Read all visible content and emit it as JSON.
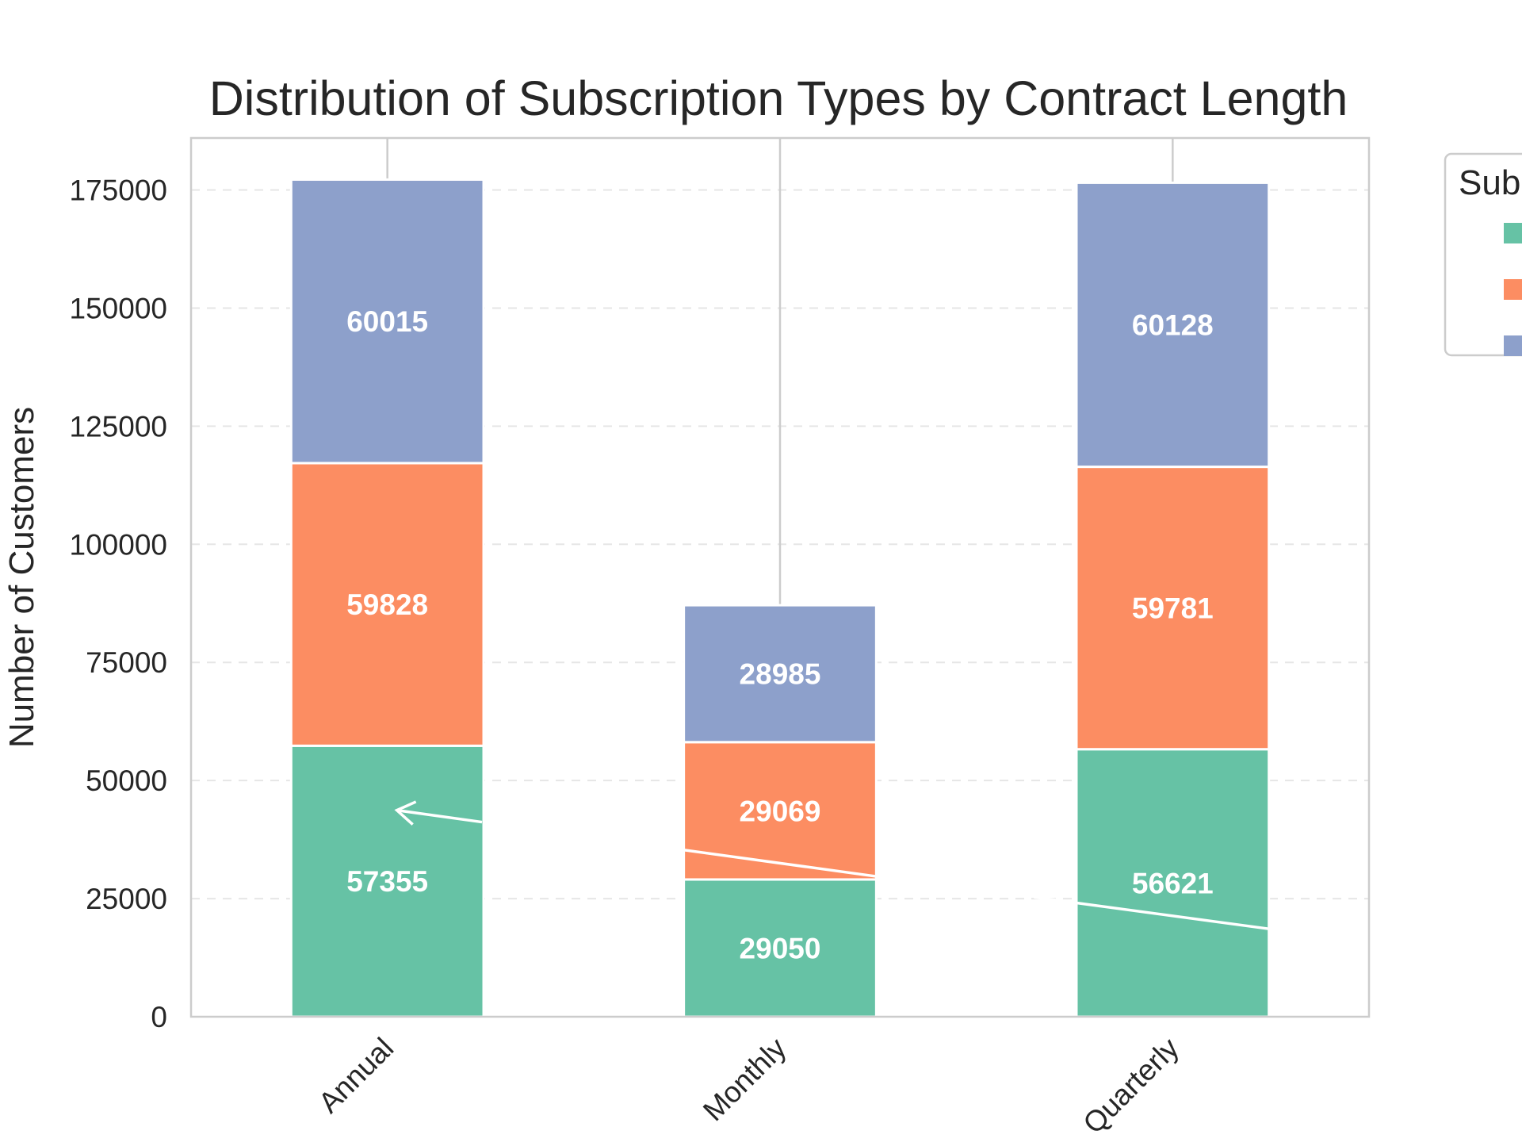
{
  "chart_data": {
    "type": "bar",
    "stacked": true,
    "title": "Distribution of Subscription Types by Contract Length",
    "xlabel": "",
    "ylabel": "Number of Customers",
    "categories": [
      "Annual",
      "Monthly",
      "Quarterly"
    ],
    "ylim": [
      0,
      186000
    ],
    "yticks": [
      0,
      25000,
      50000,
      75000,
      100000,
      125000,
      150000,
      175000
    ],
    "grid": "y dashed",
    "legend": {
      "title": "Sub",
      "placement": "outside top-right"
    },
    "series": [
      {
        "values": [
          57355,
          29050,
          56621
        ],
        "color": "#66c2a5"
      },
      {
        "values": [
          59828,
          29069,
          59781
        ],
        "color": "#fc8d62"
      },
      {
        "values": [
          60015,
          28985,
          60128
        ],
        "color": "#8da0cb"
      }
    ]
  }
}
